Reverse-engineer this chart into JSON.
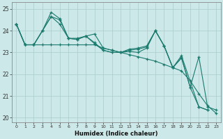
{
  "xlabel": "Humidex (Indice chaleur)",
  "xlim": [
    -0.5,
    23.5
  ],
  "ylim": [
    19.8,
    25.3
  ],
  "bg_color": "#cce8e8",
  "grid_color": "#aacccc",
  "line_color": "#1a7a6e",
  "yticks": [
    20,
    21,
    22,
    23,
    24,
    25
  ],
  "xticks": [
    0,
    1,
    2,
    3,
    4,
    5,
    6,
    7,
    8,
    9,
    10,
    11,
    12,
    13,
    14,
    15,
    16,
    17,
    18,
    19,
    20,
    21,
    22,
    23
  ],
  "line1_x": [
    0,
    1,
    2,
    3,
    4,
    5,
    6,
    7,
    8,
    9,
    10,
    11,
    12,
    13,
    14,
    15,
    16,
    17,
    18,
    19,
    21,
    22
  ],
  "line1_y": [
    24.3,
    23.35,
    23.35,
    24.0,
    24.85,
    24.55,
    23.65,
    23.6,
    23.75,
    23.85,
    23.2,
    23.1,
    23.0,
    23.05,
    23.0,
    23.2,
    24.0,
    23.3,
    22.3,
    22.85,
    20.5,
    20.35
  ],
  "line2_x": [
    0,
    1,
    2,
    3,
    4,
    5,
    6,
    7,
    8,
    9,
    10,
    11,
    12,
    13,
    14,
    15,
    16,
    17,
    18,
    19,
    20,
    21,
    22,
    23
  ],
  "line2_y": [
    24.3,
    23.35,
    23.35,
    23.35,
    23.35,
    23.35,
    23.35,
    23.35,
    23.35,
    23.35,
    23.2,
    23.1,
    23.0,
    22.9,
    22.8,
    22.7,
    22.6,
    22.45,
    22.3,
    22.15,
    21.7,
    21.1,
    20.55,
    20.2
  ],
  "line3_x": [
    0,
    1,
    2,
    3,
    4,
    5,
    6,
    7,
    8,
    9,
    10,
    11,
    12,
    13,
    14,
    15,
    16,
    17,
    18,
    19,
    20,
    21,
    22
  ],
  "line3_y": [
    24.3,
    23.35,
    23.35,
    24.0,
    24.65,
    24.5,
    23.65,
    23.6,
    23.75,
    23.45,
    23.1,
    23.0,
    23.0,
    23.15,
    23.2,
    23.3,
    24.0,
    23.3,
    22.3,
    22.75,
    21.4,
    20.5,
    20.35
  ],
  "line4_x": [
    0,
    1,
    2,
    3,
    4,
    5,
    6,
    7,
    8,
    9,
    10,
    11,
    12,
    13,
    14,
    15,
    16,
    17,
    18,
    19,
    20,
    21,
    22,
    23
  ],
  "line4_y": [
    24.3,
    23.35,
    23.35,
    24.0,
    24.65,
    24.3,
    23.65,
    23.65,
    23.75,
    23.4,
    23.1,
    23.0,
    23.0,
    23.1,
    23.15,
    23.25,
    24.0,
    23.3,
    22.3,
    22.75,
    21.4,
    22.8,
    20.5,
    20.35
  ]
}
